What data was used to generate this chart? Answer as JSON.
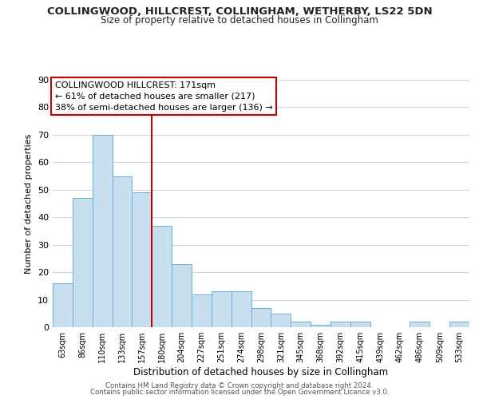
{
  "title": "COLLINGWOOD, HILLCREST, COLLINGHAM, WETHERBY, LS22 5DN",
  "subtitle": "Size of property relative to detached houses in Collingham",
  "xlabel": "Distribution of detached houses by size in Collingham",
  "ylabel": "Number of detached properties",
  "bar_labels": [
    "63sqm",
    "86sqm",
    "110sqm",
    "133sqm",
    "157sqm",
    "180sqm",
    "204sqm",
    "227sqm",
    "251sqm",
    "274sqm",
    "298sqm",
    "321sqm",
    "345sqm",
    "368sqm",
    "392sqm",
    "415sqm",
    "439sqm",
    "462sqm",
    "486sqm",
    "509sqm",
    "533sqm"
  ],
  "bar_values": [
    16,
    47,
    70,
    55,
    49,
    37,
    23,
    12,
    13,
    13,
    7,
    5,
    2,
    1,
    2,
    2,
    0,
    0,
    2,
    0,
    2
  ],
  "bar_color": "#c8dff0",
  "bar_edge_color": "#6aaed6",
  "vline_color": "#cc0000",
  "ylim": [
    0,
    90
  ],
  "yticks": [
    0,
    10,
    20,
    30,
    40,
    50,
    60,
    70,
    80,
    90
  ],
  "annotation_title": "COLLINGWOOD HILLCREST: 171sqm",
  "annotation_line1": "← 61% of detached houses are smaller (217)",
  "annotation_line2": "38% of semi-detached houses are larger (136) →",
  "annotation_box_color": "#ffffff",
  "annotation_box_edge": "#cc0000",
  "footer_line1": "Contains HM Land Registry data © Crown copyright and database right 2024.",
  "footer_line2": "Contains public sector information licensed under the Open Government Licence v3.0.",
  "background_color": "#ffffff",
  "grid_color": "#ccd8e8"
}
